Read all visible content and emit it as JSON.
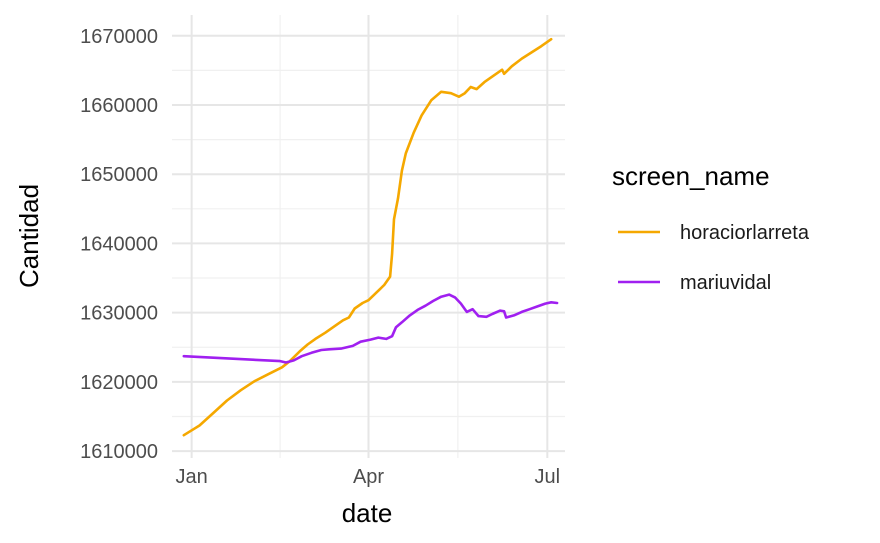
{
  "chart_data": {
    "type": "line",
    "xlabel": "date",
    "ylabel": "Cantidad",
    "x_tick_labels": [
      "Jan",
      "Apr",
      "Jul"
    ],
    "x_ticks": [
      "2021-01-01",
      "2021-04-01",
      "2021-07-01"
    ],
    "xlim": [
      "2020-12-22",
      "2021-07-10"
    ],
    "y_ticks": [
      1610000,
      1620000,
      1630000,
      1640000,
      1650000,
      1660000,
      1670000
    ],
    "y_tick_labels": [
      "1610000",
      "1620000",
      "1630000",
      "1640000",
      "1650000",
      "1660000",
      "1670000"
    ],
    "ylim": [
      1609000,
      1673000
    ],
    "grid": true,
    "legend": {
      "title": "screen_name",
      "position": "right"
    },
    "series": [
      {
        "name": "horaciorlarreta",
        "color": "#F5A800",
        "points": [
          [
            "2020-12-28",
            1612300
          ],
          [
            "2021-01-01",
            1613000
          ],
          [
            "2021-01-05",
            1613700
          ],
          [
            "2021-01-12",
            1615500
          ],
          [
            "2021-01-19",
            1617300
          ],
          [
            "2021-01-26",
            1618800
          ],
          [
            "2021-02-02",
            1620100
          ],
          [
            "2021-02-09",
            1621100
          ],
          [
            "2021-02-16",
            1622100
          ],
          [
            "2021-02-20",
            1623000
          ],
          [
            "2021-02-25",
            1624400
          ],
          [
            "2021-03-01",
            1625400
          ],
          [
            "2021-03-05",
            1626200
          ],
          [
            "2021-03-10",
            1627100
          ],
          [
            "2021-03-15",
            1628100
          ],
          [
            "2021-03-19",
            1628900
          ],
          [
            "2021-03-22",
            1629300
          ],
          [
            "2021-03-25",
            1630600
          ],
          [
            "2021-03-29",
            1631400
          ],
          [
            "2021-04-01",
            1631800
          ],
          [
            "2021-04-05",
            1632900
          ],
          [
            "2021-04-09",
            1634000
          ],
          [
            "2021-04-12",
            1635200
          ],
          [
            "2021-04-13",
            1638500
          ],
          [
            "2021-04-14",
            1643500
          ],
          [
            "2021-04-16",
            1646500
          ],
          [
            "2021-04-18",
            1650500
          ],
          [
            "2021-04-20",
            1653000
          ],
          [
            "2021-04-24",
            1656000
          ],
          [
            "2021-04-28",
            1658500
          ],
          [
            "2021-05-03",
            1660700
          ],
          [
            "2021-05-08",
            1661900
          ],
          [
            "2021-05-13",
            1661700
          ],
          [
            "2021-05-17",
            1661200
          ],
          [
            "2021-05-20",
            1661700
          ],
          [
            "2021-05-23",
            1662600
          ],
          [
            "2021-05-26",
            1662300
          ],
          [
            "2021-05-30",
            1663300
          ],
          [
            "2021-06-05",
            1664500
          ],
          [
            "2021-06-08",
            1665100
          ],
          [
            "2021-06-09",
            1664500
          ],
          [
            "2021-06-13",
            1665600
          ],
          [
            "2021-06-18",
            1666700
          ],
          [
            "2021-06-23",
            1667600
          ],
          [
            "2021-06-28",
            1668500
          ],
          [
            "2021-07-03",
            1669500
          ]
        ]
      },
      {
        "name": "mariuvidal",
        "color": "#A020F0",
        "points": [
          [
            "2020-12-28",
            1623700
          ],
          [
            "2021-02-15",
            1623000
          ],
          [
            "2021-02-18",
            1622800
          ],
          [
            "2021-02-22",
            1623100
          ],
          [
            "2021-02-26",
            1623700
          ],
          [
            "2021-03-03",
            1624200
          ],
          [
            "2021-03-08",
            1624600
          ],
          [
            "2021-03-12",
            1624700
          ],
          [
            "2021-03-18",
            1624800
          ],
          [
            "2021-03-24",
            1625200
          ],
          [
            "2021-03-28",
            1625800
          ],
          [
            "2021-04-02",
            1626100
          ],
          [
            "2021-04-06",
            1626400
          ],
          [
            "2021-04-10",
            1626200
          ],
          [
            "2021-04-13",
            1626600
          ],
          [
            "2021-04-15",
            1627900
          ],
          [
            "2021-04-18",
            1628600
          ],
          [
            "2021-04-22",
            1629600
          ],
          [
            "2021-04-26",
            1630400
          ],
          [
            "2021-04-30",
            1631000
          ],
          [
            "2021-05-04",
            1631700
          ],
          [
            "2021-05-08",
            1632300
          ],
          [
            "2021-05-12",
            1632600
          ],
          [
            "2021-05-15",
            1632200
          ],
          [
            "2021-05-18",
            1631300
          ],
          [
            "2021-05-21",
            1630100
          ],
          [
            "2021-05-24",
            1630500
          ],
          [
            "2021-05-27",
            1629500
          ],
          [
            "2021-05-31",
            1629400
          ],
          [
            "2021-06-03",
            1629800
          ],
          [
            "2021-06-07",
            1630300
          ],
          [
            "2021-06-09",
            1630200
          ],
          [
            "2021-06-10",
            1629300
          ],
          [
            "2021-06-14",
            1629600
          ],
          [
            "2021-06-18",
            1630100
          ],
          [
            "2021-06-22",
            1630500
          ],
          [
            "2021-06-26",
            1630900
          ],
          [
            "2021-06-30",
            1631300
          ],
          [
            "2021-07-03",
            1631500
          ],
          [
            "2021-07-06",
            1631400
          ]
        ]
      }
    ]
  }
}
